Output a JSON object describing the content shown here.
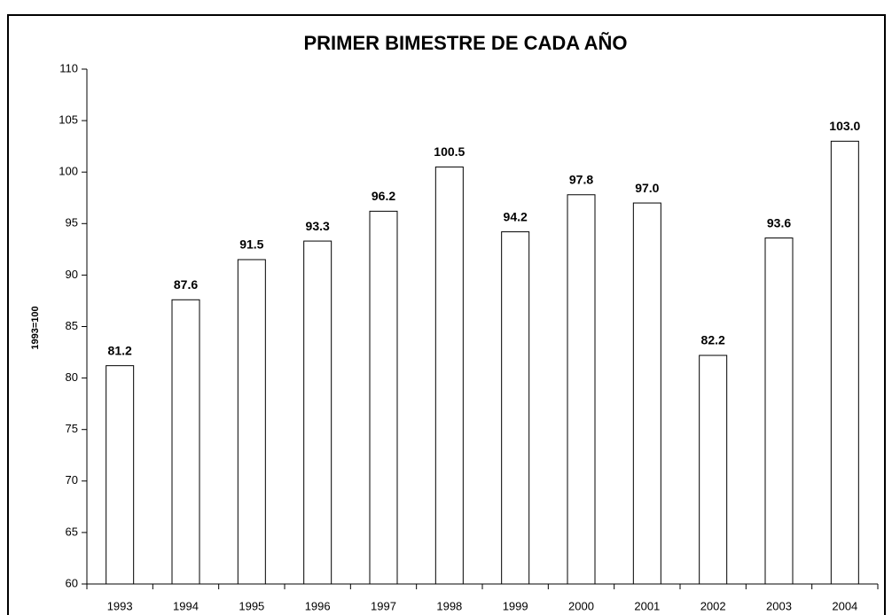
{
  "chart_data": {
    "type": "bar",
    "title": "PRIMER BIMESTRE DE CADA AÑO",
    "y_label": "1993=100",
    "categories": [
      "1993",
      "1994",
      "1995",
      "1996",
      "1997",
      "1998",
      "1999",
      "2000",
      "2001",
      "2002",
      "2003",
      "2004"
    ],
    "values": [
      81.2,
      87.6,
      91.5,
      93.3,
      96.2,
      100.5,
      94.2,
      97.8,
      97.0,
      82.2,
      93.6,
      103.0
    ],
    "value_labels": [
      "81.2",
      "87.6",
      "91.5",
      "93.3",
      "96.2",
      "100.5",
      "94.2",
      "97.8",
      "97.0",
      "82.2",
      "93.6",
      "103.0"
    ],
    "color": "#ffffff",
    "ylim": [
      60,
      110
    ],
    "yticks": [
      60,
      65,
      70,
      75,
      80,
      85,
      90,
      95,
      100,
      105,
      110
    ],
    "grid": false
  }
}
